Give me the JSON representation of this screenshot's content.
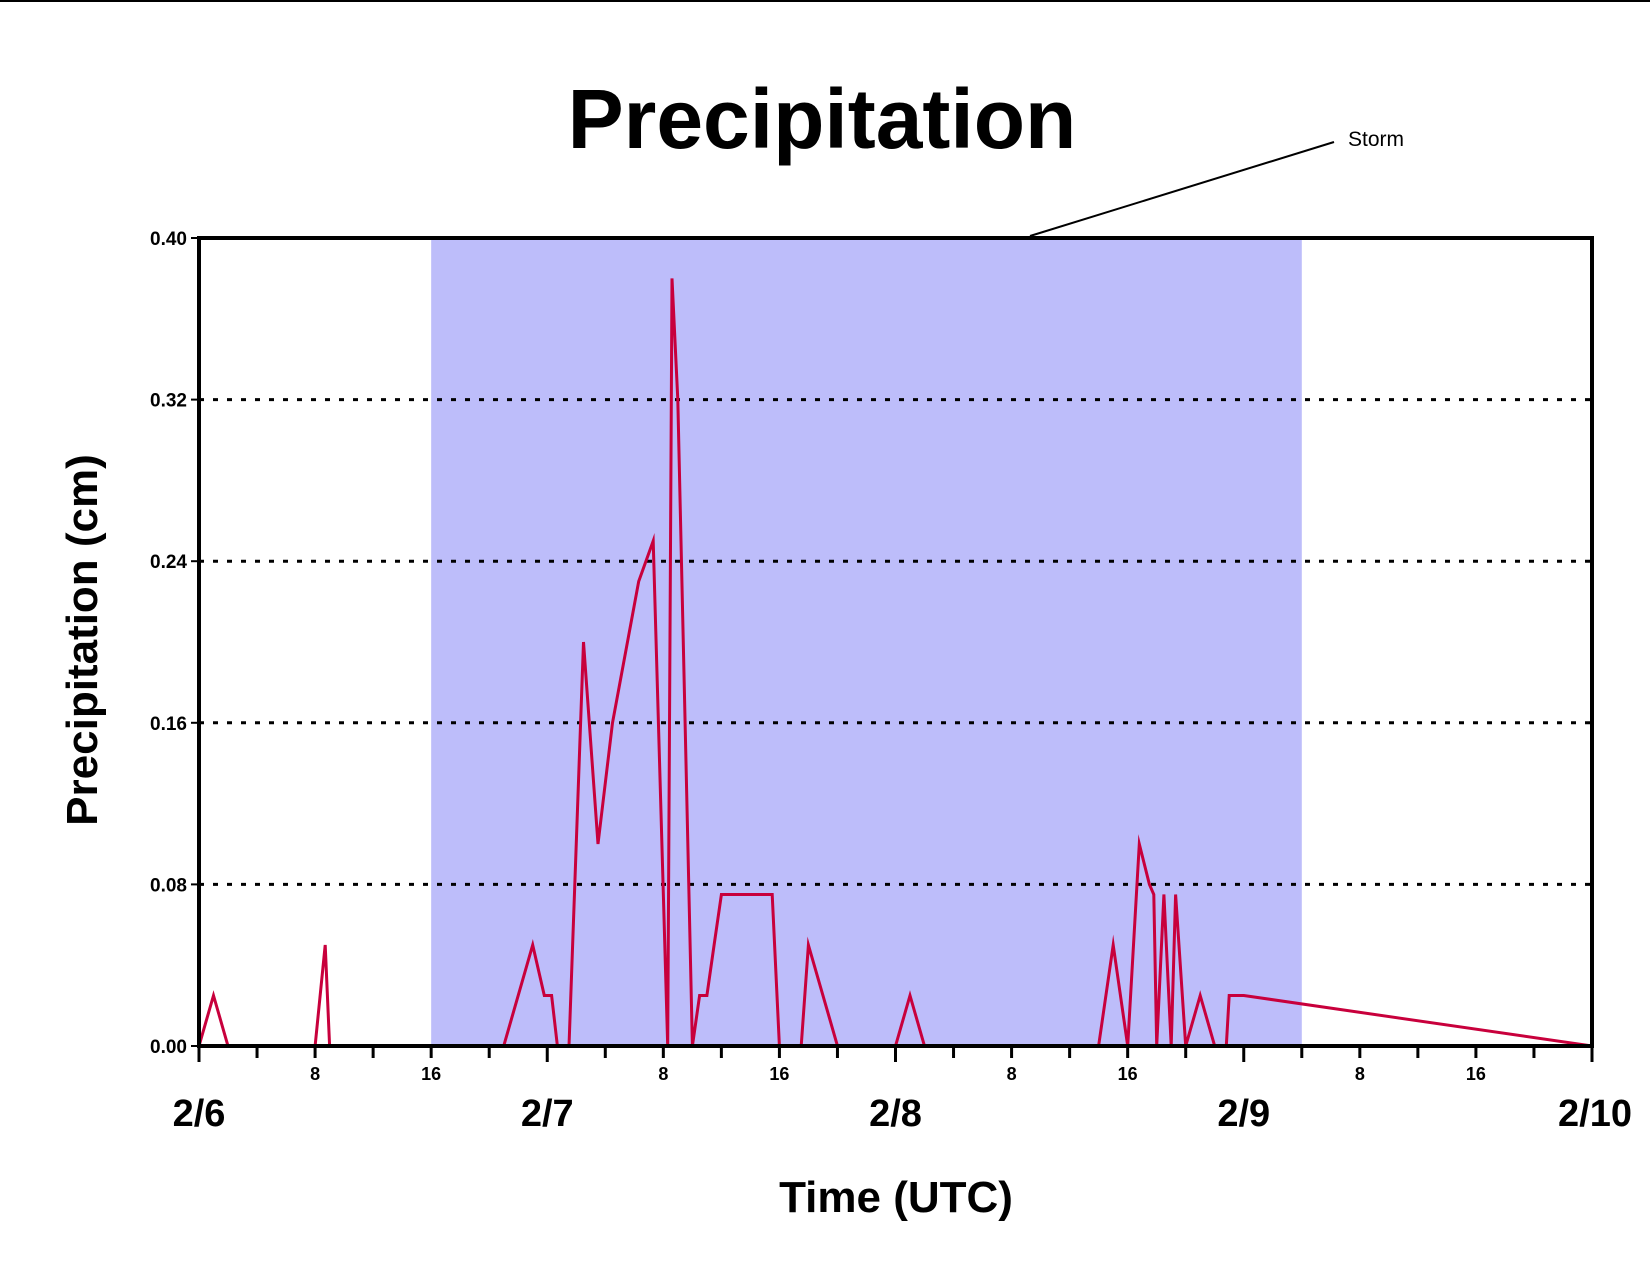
{
  "chart_data": {
    "type": "line",
    "title": "Precipitation",
    "xlabel": "Time (UTC)",
    "ylabel": "Precipitation (cm)",
    "ylim": [
      0,
      0.4
    ],
    "yticks": [
      "0.00",
      "0.08",
      "0.16",
      "0.24",
      "0.32",
      "0.40"
    ],
    "xlim_hours": [
      0,
      96
    ],
    "x_units": "hours since 2/6 00 UTC",
    "x_major_labels": [
      "2/6",
      "2/7",
      "2/8",
      "2/9",
      "2/10"
    ],
    "x_minor_labels": [
      "8",
      "16"
    ],
    "grid": "horizontal dotted",
    "storm_period": {
      "start_hour": 16,
      "end_hour": 76,
      "color": "#bdbdfa",
      "label": "Storm"
    },
    "series": [
      {
        "name": "",
        "color": "#c8003c",
        "x": [
          0,
          1,
          2,
          8,
          8.7,
          9,
          16,
          21,
          23,
          23.8,
          24.3,
          24.7,
          25.5,
          26.5,
          27.5,
          28.5,
          30.3,
          31.3,
          32.3,
          32.6,
          33,
          34,
          34.5,
          35,
          35.5,
          36,
          37.5,
          39.5,
          40,
          41.5,
          42,
          44,
          45.5,
          48,
          49,
          50,
          62,
          63,
          64,
          64.8,
          65.5,
          65.8,
          66,
          66.5,
          67,
          67.3,
          68,
          69,
          70,
          70.8,
          71,
          72,
          96
        ],
        "y": [
          0,
          0.025,
          0,
          0,
          0.05,
          0,
          0,
          0,
          0.05,
          0.025,
          0.025,
          0,
          0,
          0.2,
          0.1,
          0.16,
          0.23,
          0.25,
          0,
          0.38,
          0.32,
          0,
          0.025,
          0.025,
          0.05,
          0.075,
          0.075,
          0.075,
          0,
          0,
          0.05,
          0,
          0,
          0,
          0.025,
          0,
          0,
          0.05,
          0,
          0.1,
          0.08,
          0.075,
          0,
          0.075,
          0,
          0.075,
          0,
          0.025,
          0,
          0,
          0.025,
          0.025,
          0
        ]
      }
    ]
  }
}
